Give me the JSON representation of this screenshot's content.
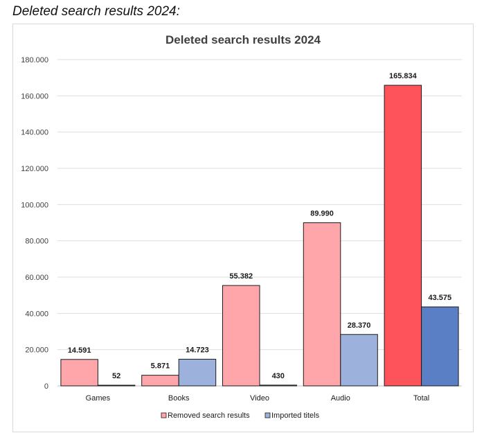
{
  "caption": "Deleted search results 2024:",
  "chart_data": {
    "type": "bar",
    "title": "Deleted search results 2024",
    "categories": [
      "Games",
      "Books",
      "Video",
      "Audio",
      "Total"
    ],
    "series": [
      {
        "name": "Removed search results",
        "values": [
          14591,
          5871,
          55382,
          89990,
          165834
        ],
        "labels": [
          "14.591",
          "5.871",
          "55.382",
          "89.990",
          "165.834"
        ],
        "color": "#ffa6ab",
        "total_color": "#ff535c"
      },
      {
        "name": "Imported titels",
        "values": [
          52,
          14723,
          430,
          28370,
          43575
        ],
        "labels": [
          "52",
          "14.723",
          "430",
          "28.370",
          "43.575"
        ],
        "color": "#9cb2dc",
        "total_color": "#5a7fc4"
      }
    ],
    "y_ticks": [
      "0",
      "20.000",
      "40.000",
      "60.000",
      "80.000",
      "100.000",
      "120.000",
      "140.000",
      "160.000",
      "180.000"
    ],
    "ylim": [
      0,
      180000
    ],
    "grid": true,
    "legend": "bottom-center"
  }
}
